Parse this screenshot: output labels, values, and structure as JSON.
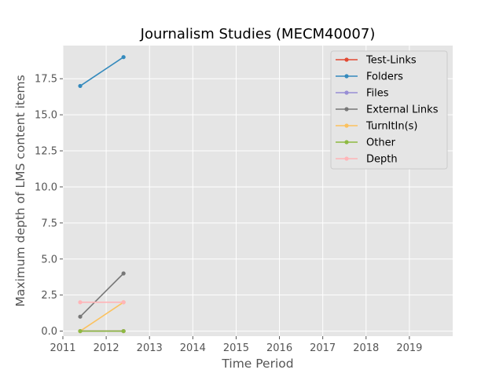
{
  "chart_data": {
    "type": "line",
    "title": "Journalism Studies (MECM40007)",
    "xlabel": "Time Period",
    "ylabel": "Maximum depth of LMS content items",
    "xlim": [
      2011.0,
      2020.0
    ],
    "ylim": [
      -0.35,
      19.8
    ],
    "x_ticks": [
      2011,
      2012,
      2013,
      2014,
      2015,
      2016,
      2017,
      2018,
      2019
    ],
    "x_tick_labels": [
      "2011",
      "2012",
      "2013",
      "2014",
      "2015",
      "2016",
      "2017",
      "2018",
      "2019"
    ],
    "y_ticks": [
      0,
      2.5,
      5,
      7.5,
      10,
      12.5,
      15,
      17.5
    ],
    "y_tick_labels": [
      "0.0",
      "2.5",
      "5.0",
      "7.5",
      "10.0",
      "12.5",
      "15.0",
      "17.5"
    ],
    "grid": true,
    "legend_position": "top-right",
    "x": [
      2011.4,
      2012.4
    ],
    "series": [
      {
        "name": "Test-Links",
        "color": "#E24A33",
        "values": [
          0,
          0
        ]
      },
      {
        "name": "Folders",
        "color": "#348ABD",
        "values": [
          17,
          19
        ]
      },
      {
        "name": "Files",
        "color": "#988ED5",
        "values": [
          0,
          0
        ]
      },
      {
        "name": "External Links",
        "color": "#777777",
        "values": [
          1,
          4
        ]
      },
      {
        "name": "TurnItIn(s)",
        "color": "#FBC15E",
        "values": [
          0,
          2
        ]
      },
      {
        "name": "Other",
        "color": "#8EBA42",
        "values": [
          0,
          0
        ]
      },
      {
        "name": "Depth",
        "color": "#FFB5B8",
        "values": [
          2,
          2
        ]
      }
    ]
  }
}
